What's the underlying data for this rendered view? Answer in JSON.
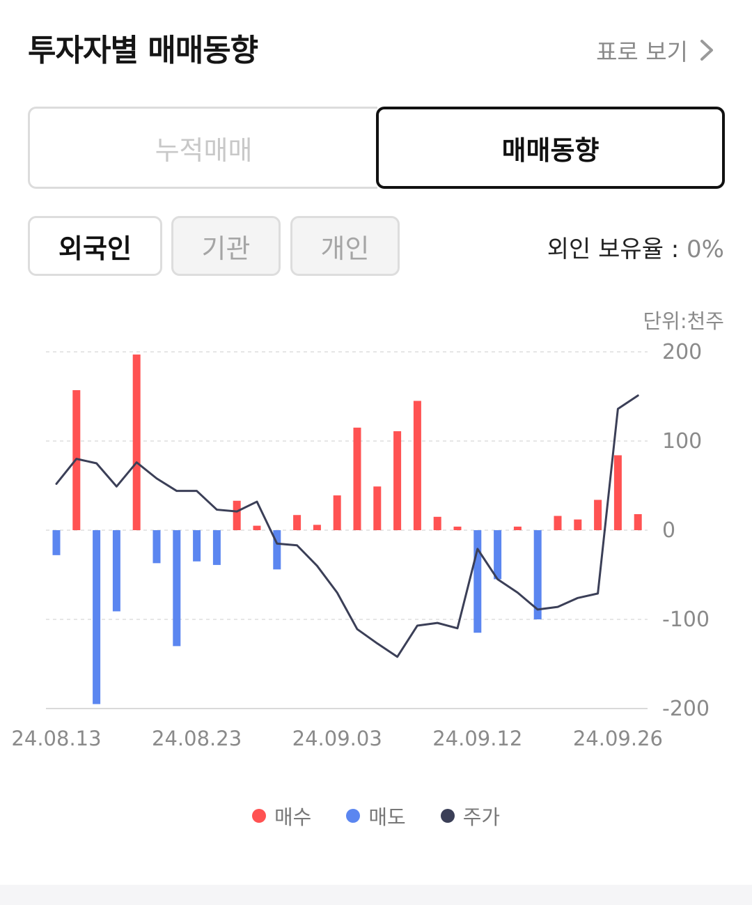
{
  "header": {
    "title": "투자자별 매매동향",
    "table_link": "표로 보기"
  },
  "segment": {
    "tab_cumulative": "누적매매",
    "tab_trend": "매매동향"
  },
  "filters": {
    "foreign": "외국인",
    "institution": "기관",
    "individual": "개인"
  },
  "holding": {
    "label": "외인 보유율 : ",
    "value": "0%"
  },
  "unit": "단위:천주",
  "colors": {
    "buy": "#ff5252",
    "sell": "#5b86f0",
    "price": "#3b3f57"
  },
  "chart_data": {
    "type": "bar",
    "ylim": [
      -200,
      200
    ],
    "yticks": [
      "200",
      "100",
      "0",
      "-100",
      "-200"
    ],
    "xtick_labels": [
      "24.08.13",
      "24.08.23",
      "24.09.03",
      "24.09.12",
      "24.09.26"
    ],
    "xtick_indices": [
      0,
      7,
      14,
      21,
      28
    ],
    "grid": true,
    "series": [
      {
        "name": "매수/매도",
        "values": [
          -28,
          157,
          -195,
          -91,
          197,
          -37,
          -130,
          -35,
          -39,
          33,
          5,
          -44,
          17,
          6,
          39,
          115,
          49,
          111,
          145,
          15,
          4,
          -115,
          -55,
          4,
          -100,
          16,
          12,
          34,
          84,
          18
        ]
      },
      {
        "name": "주가",
        "type": "line",
        "values": [
          52,
          80,
          75,
          49,
          76,
          58,
          44,
          44,
          23,
          21,
          32,
          -15,
          -17,
          -40,
          -70,
          -111,
          -127,
          -142,
          -107,
          -104,
          -110,
          -21,
          -55,
          -70,
          -89,
          -86,
          -76,
          -71,
          136,
          151
        ]
      }
    ]
  },
  "legend": {
    "buy": "매수",
    "sell": "매도",
    "price": "주가"
  }
}
